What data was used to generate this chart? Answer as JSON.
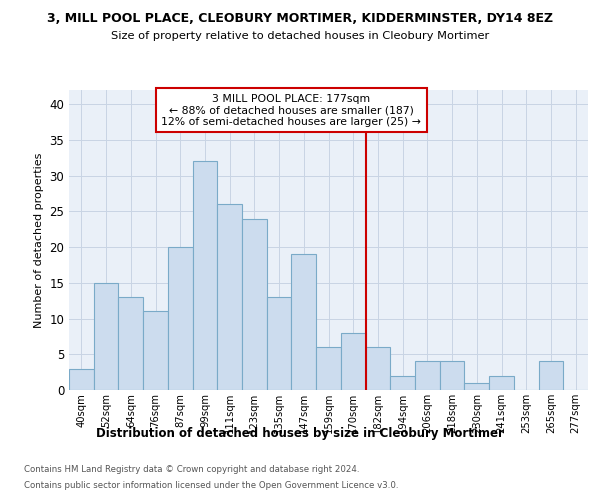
{
  "title": "3, MILL POOL PLACE, CLEOBURY MORTIMER, KIDDERMINSTER, DY14 8EZ",
  "subtitle": "Size of property relative to detached houses in Cleobury Mortimer",
  "xlabel": "Distribution of detached houses by size in Cleobury Mortimer",
  "ylabel": "Number of detached properties",
  "footnote1": "Contains HM Land Registry data © Crown copyright and database right 2024.",
  "footnote2": "Contains public sector information licensed under the Open Government Licence v3.0.",
  "bar_labels": [
    "40sqm",
    "52sqm",
    "64sqm",
    "76sqm",
    "87sqm",
    "99sqm",
    "111sqm",
    "123sqm",
    "135sqm",
    "147sqm",
    "159sqm",
    "170sqm",
    "182sqm",
    "194sqm",
    "206sqm",
    "218sqm",
    "230sqm",
    "241sqm",
    "253sqm",
    "265sqm",
    "277sqm"
  ],
  "bar_values": [
    3,
    15,
    13,
    11,
    20,
    32,
    26,
    24,
    13,
    19,
    6,
    8,
    6,
    2,
    4,
    4,
    1,
    2,
    0,
    4,
    0
  ],
  "bar_color": "#ccdcee",
  "bar_edge_color": "#7aaac8",
  "grid_color": "#c8d4e4",
  "bg_color": "#eaf0f8",
  "annotation_text_line1": "3 MILL POOL PLACE: 177sqm",
  "annotation_text_line2": "← 88% of detached houses are smaller (187)",
  "annotation_text_line3": "12% of semi-detached houses are larger (25) →",
  "annotation_box_color": "#cc0000",
  "ylim": [
    0,
    42
  ],
  "yticks": [
    0,
    5,
    10,
    15,
    20,
    25,
    30,
    35,
    40
  ],
  "marker_bin_index": 11,
  "marker_bin_value": 170,
  "marker_next_bin_value": 182,
  "marker_sqm": 177
}
